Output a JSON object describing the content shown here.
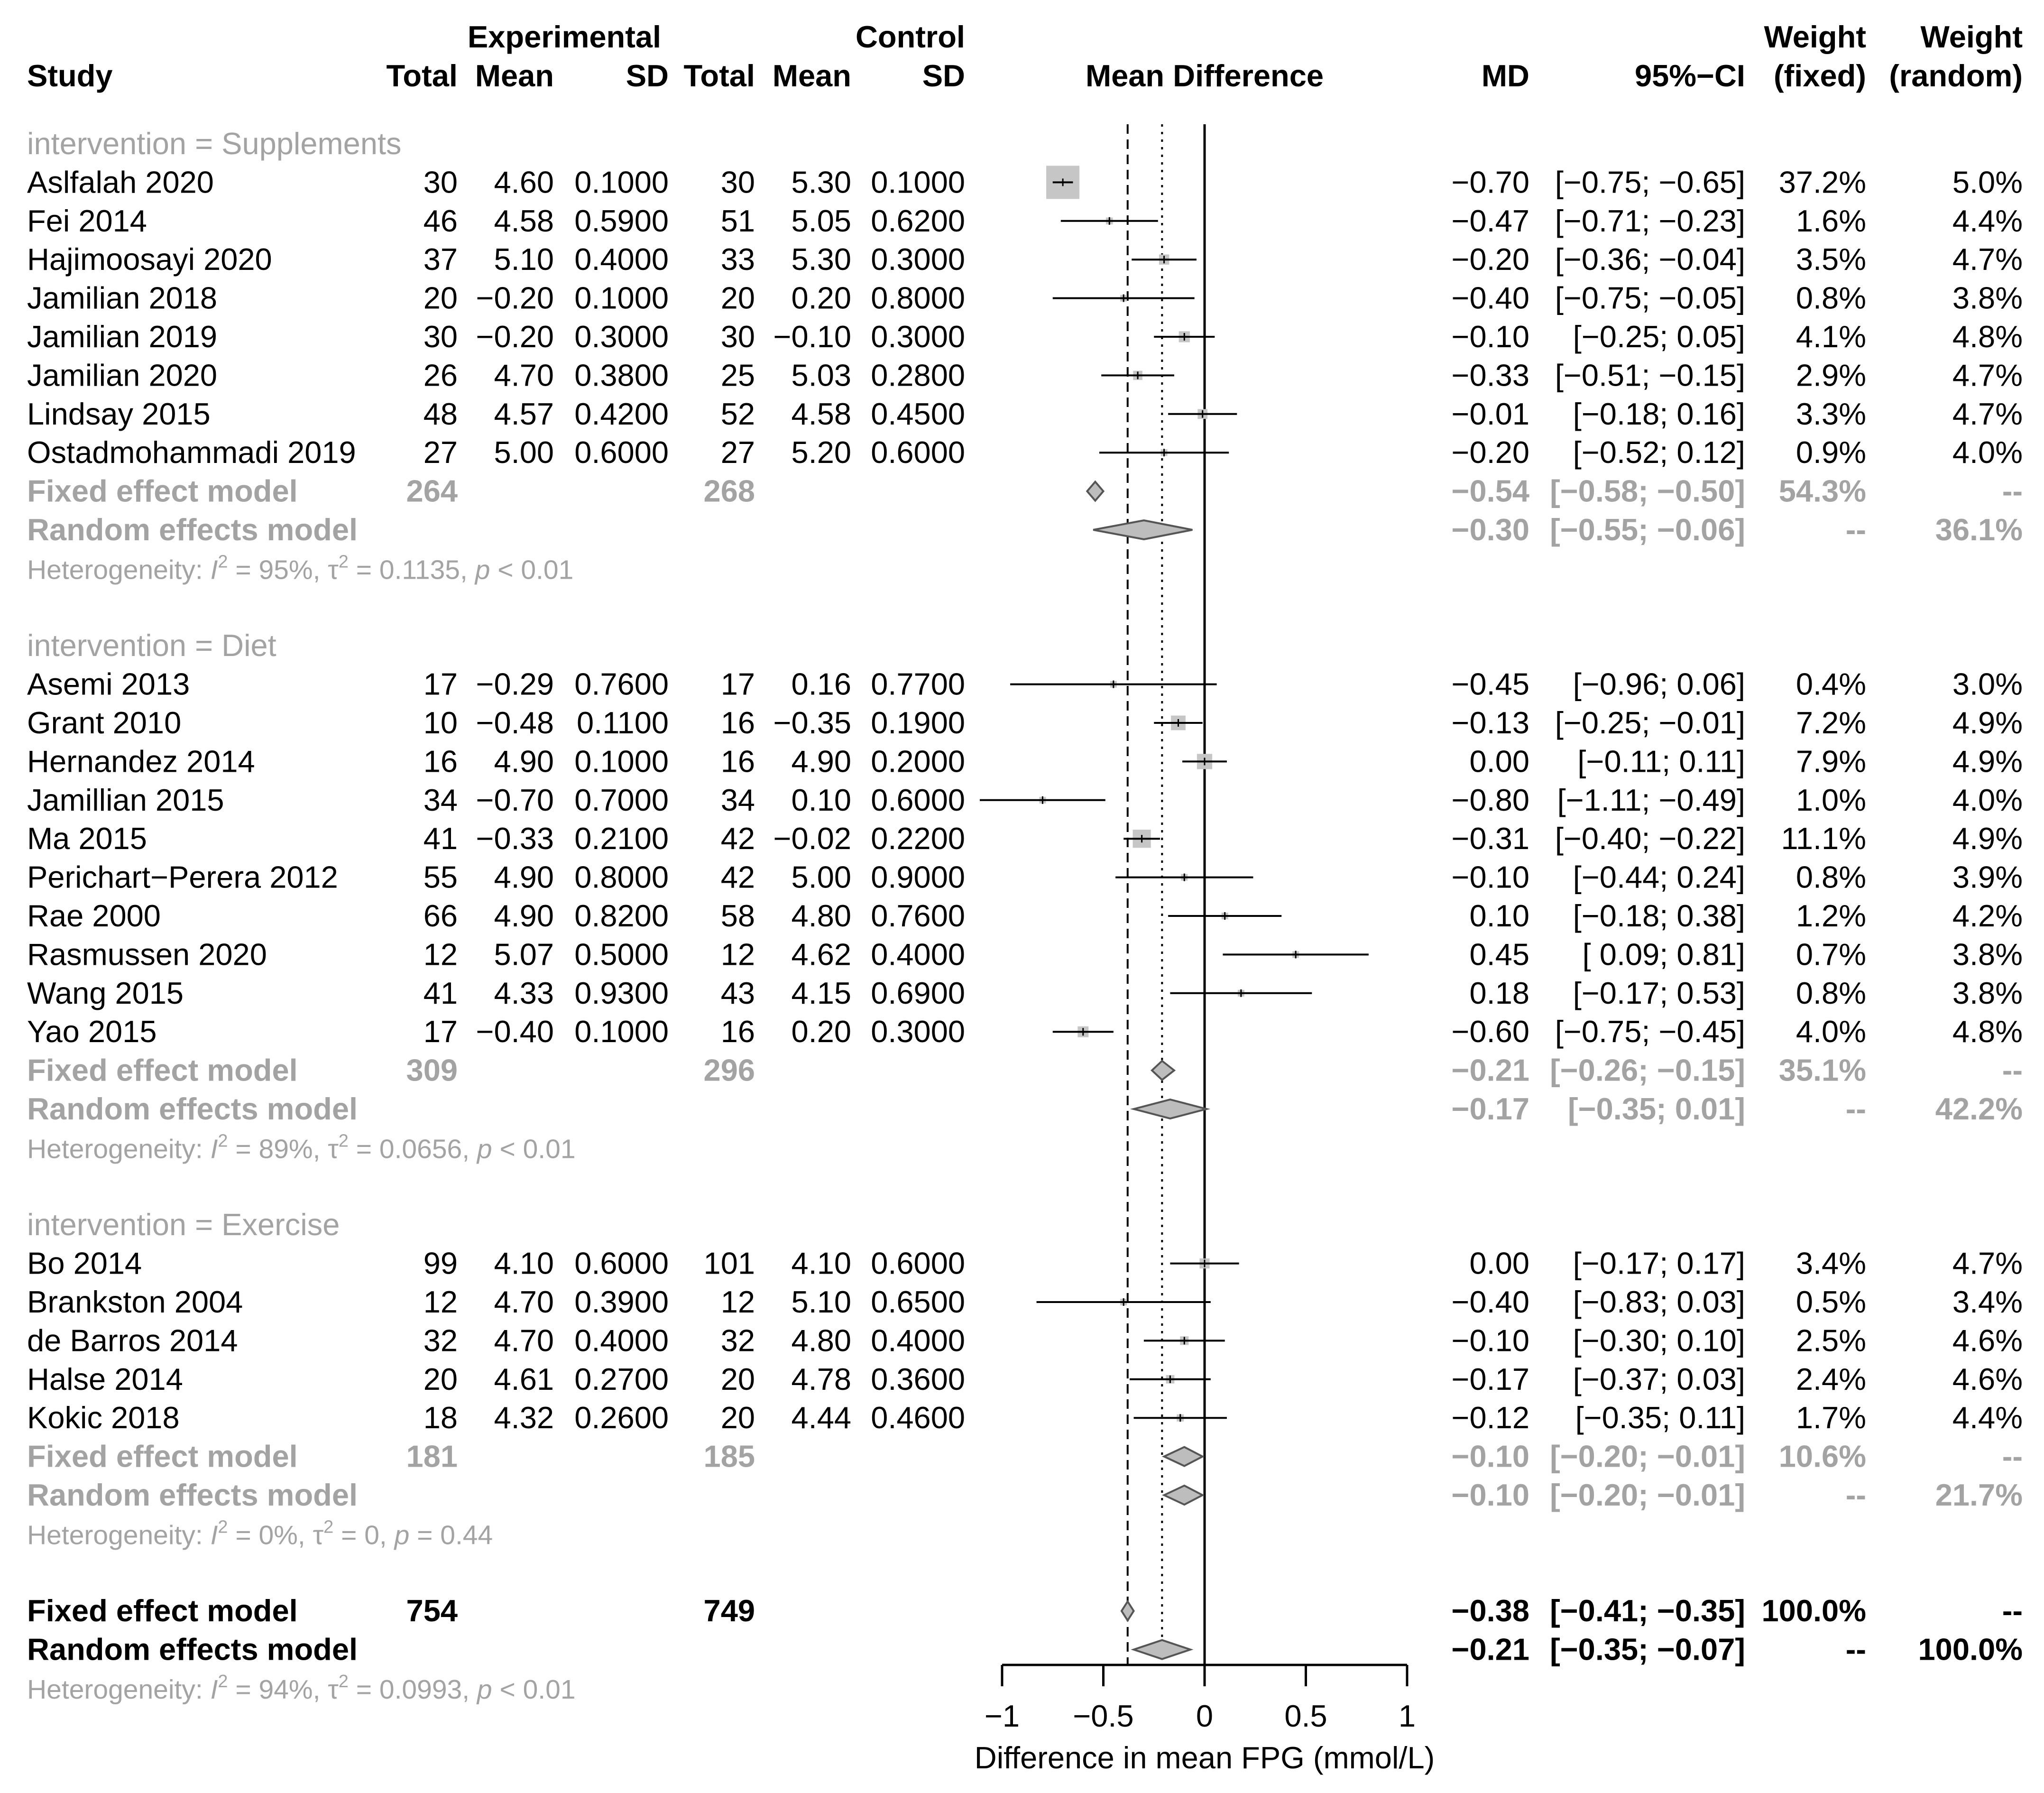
{
  "chart_data": {
    "type": "forest",
    "header": {
      "experimental": "Experimental",
      "control": "Control",
      "weight": "Weight",
      "study": "Study",
      "total": "Total",
      "mean": "Mean",
      "sd": "SD",
      "mean_difference": "Mean Difference",
      "md": "MD",
      "ci": "95%−CI",
      "fixed": "(fixed)",
      "random": "(random)"
    },
    "xaxis": {
      "label": "Difference in mean FPG (mmol/L)",
      "min": -1,
      "max": 1,
      "ticks": [
        {
          "value": -1,
          "label": "−1"
        },
        {
          "value": -0.5,
          "label": "−0.5"
        },
        {
          "value": 0,
          "label": "0"
        },
        {
          "value": 0.5,
          "label": "0.5"
        },
        {
          "value": 1,
          "label": "1"
        }
      ]
    },
    "overall_fixed_md": -0.38,
    "overall_random_md": -0.21,
    "groups": [
      {
        "title": "intervention = Supplements",
        "studies": [
          {
            "name": "Aslfalah 2020",
            "et": "30",
            "em": "4.60",
            "esd": "0.1000",
            "ct": "30",
            "cm": "5.30",
            "csd": "0.1000",
            "md_text": "−0.70",
            "ci_text": "[−0.75; −0.65]",
            "wf": "37.2%",
            "wr": "5.0%",
            "md": -0.7,
            "lo": -0.75,
            "hi": -0.65,
            "w": 37.2
          },
          {
            "name": "Fei 2014",
            "et": "46",
            "em": "4.58",
            "esd": "0.5900",
            "ct": "51",
            "cm": "5.05",
            "csd": "0.6200",
            "md_text": "−0.47",
            "ci_text": "[−0.71; −0.23]",
            "wf": "1.6%",
            "wr": "4.4%",
            "md": -0.47,
            "lo": -0.71,
            "hi": -0.23,
            "w": 1.6
          },
          {
            "name": "Hajimoosayi 2020",
            "et": "37",
            "em": "5.10",
            "esd": "0.4000",
            "ct": "33",
            "cm": "5.30",
            "csd": "0.3000",
            "md_text": "−0.20",
            "ci_text": "[−0.36; −0.04]",
            "wf": "3.5%",
            "wr": "4.7%",
            "md": -0.2,
            "lo": -0.36,
            "hi": -0.04,
            "w": 3.5
          },
          {
            "name": "Jamilian 2018",
            "et": "20",
            "em": "−0.20",
            "esd": "0.1000",
            "ct": "20",
            "cm": "0.20",
            "csd": "0.8000",
            "md_text": "−0.40",
            "ci_text": "[−0.75; −0.05]",
            "wf": "0.8%",
            "wr": "3.8%",
            "md": -0.4,
            "lo": -0.75,
            "hi": -0.05,
            "w": 0.8
          },
          {
            "name": "Jamilian 2019",
            "et": "30",
            "em": "−0.20",
            "esd": "0.3000",
            "ct": "30",
            "cm": "−0.10",
            "csd": "0.3000",
            "md_text": "−0.10",
            "ci_text": "[−0.25; 0.05]",
            "wf": "4.1%",
            "wr": "4.8%",
            "md": -0.1,
            "lo": -0.25,
            "hi": 0.05,
            "w": 4.1
          },
          {
            "name": "Jamilian 2020",
            "et": "26",
            "em": "4.70",
            "esd": "0.3800",
            "ct": "25",
            "cm": "5.03",
            "csd": "0.2800",
            "md_text": "−0.33",
            "ci_text": "[−0.51; −0.15]",
            "wf": "2.9%",
            "wr": "4.7%",
            "md": -0.33,
            "lo": -0.51,
            "hi": -0.15,
            "w": 2.9
          },
          {
            "name": "Lindsay 2015",
            "et": "48",
            "em": "4.57",
            "esd": "0.4200",
            "ct": "52",
            "cm": "4.58",
            "csd": "0.4500",
            "md_text": "−0.01",
            "ci_text": "[−0.18; 0.16]",
            "wf": "3.3%",
            "wr": "4.7%",
            "md": -0.01,
            "lo": -0.18,
            "hi": 0.16,
            "w": 3.3
          },
          {
            "name": "Ostadmohammadi 2019",
            "et": "27",
            "em": "5.00",
            "esd": "0.6000",
            "ct": "27",
            "cm": "5.20",
            "csd": "0.6000",
            "md_text": "−0.20",
            "ci_text": "[−0.52; 0.12]",
            "wf": "0.9%",
            "wr": "4.0%",
            "md": -0.2,
            "lo": -0.52,
            "hi": 0.12,
            "w": 0.9
          }
        ],
        "fixed": {
          "label": "Fixed effect model",
          "et": "264",
          "ct": "268",
          "md_text": "−0.54",
          "ci_text": "[−0.58; −0.50]",
          "wf": "54.3%",
          "wr": "--",
          "md": -0.54,
          "lo": -0.58,
          "hi": -0.5
        },
        "random": {
          "label": "Random effects model",
          "md_text": "−0.30",
          "ci_text": "[−0.55; −0.06]",
          "wf": "--",
          "wr": "36.1%",
          "md": -0.3,
          "lo": -0.55,
          "hi": -0.06
        },
        "het": {
          "prefix": "Heterogeneity: ",
          "i2": "95%",
          "tau2": "0.1135",
          "p": "< 0.01"
        }
      },
      {
        "title": "intervention = Diet",
        "studies": [
          {
            "name": "Asemi 2013",
            "et": "17",
            "em": "−0.29",
            "esd": "0.7600",
            "ct": "17",
            "cm": "0.16",
            "csd": "0.7700",
            "md_text": "−0.45",
            "ci_text": "[−0.96; 0.06]",
            "wf": "0.4%",
            "wr": "3.0%",
            "md": -0.45,
            "lo": -0.96,
            "hi": 0.06,
            "w": 0.4
          },
          {
            "name": "Grant 2010",
            "et": "10",
            "em": "−0.48",
            "esd": "0.1100",
            "ct": "16",
            "cm": "−0.35",
            "csd": "0.1900",
            "md_text": "−0.13",
            "ci_text": "[−0.25; −0.01]",
            "wf": "7.2%",
            "wr": "4.9%",
            "md": -0.13,
            "lo": -0.25,
            "hi": -0.01,
            "w": 7.2
          },
          {
            "name": "Hernandez 2014",
            "et": "16",
            "em": "4.90",
            "esd": "0.1000",
            "ct": "16",
            "cm": "4.90",
            "csd": "0.2000",
            "md_text": "0.00",
            "ci_text": "[−0.11; 0.11]",
            "wf": "7.9%",
            "wr": "4.9%",
            "md": 0.0,
            "lo": -0.11,
            "hi": 0.11,
            "w": 7.9
          },
          {
            "name": "Jamillian 2015",
            "et": "34",
            "em": "−0.70",
            "esd": "0.7000",
            "ct": "34",
            "cm": "0.10",
            "csd": "0.6000",
            "md_text": "−0.80",
            "ci_text": "[−1.11; −0.49]",
            "wf": "1.0%",
            "wr": "4.0%",
            "md": -0.8,
            "lo": -1.11,
            "hi": -0.49,
            "w": 1.0
          },
          {
            "name": "Ma 2015",
            "et": "41",
            "em": "−0.33",
            "esd": "0.2100",
            "ct": "42",
            "cm": "−0.02",
            "csd": "0.2200",
            "md_text": "−0.31",
            "ci_text": "[−0.40; −0.22]",
            "wf": "11.1%",
            "wr": "4.9%",
            "md": -0.31,
            "lo": -0.4,
            "hi": -0.22,
            "w": 11.1
          },
          {
            "name": "Perichart−Perera 2012",
            "et": "55",
            "em": "4.90",
            "esd": "0.8000",
            "ct": "42",
            "cm": "5.00",
            "csd": "0.9000",
            "md_text": "−0.10",
            "ci_text": "[−0.44; 0.24]",
            "wf": "0.8%",
            "wr": "3.9%",
            "md": -0.1,
            "lo": -0.44,
            "hi": 0.24,
            "w": 0.8
          },
          {
            "name": "Rae 2000",
            "et": "66",
            "em": "4.90",
            "esd": "0.8200",
            "ct": "58",
            "cm": "4.80",
            "csd": "0.7600",
            "md_text": "0.10",
            "ci_text": "[−0.18; 0.38]",
            "wf": "1.2%",
            "wr": "4.2%",
            "md": 0.1,
            "lo": -0.18,
            "hi": 0.38,
            "w": 1.2
          },
          {
            "name": "Rasmussen 2020",
            "et": "12",
            "em": "5.07",
            "esd": "0.5000",
            "ct": "12",
            "cm": "4.62",
            "csd": "0.4000",
            "md_text": "0.45",
            "ci_text": "[ 0.09; 0.81]",
            "wf": "0.7%",
            "wr": "3.8%",
            "md": 0.45,
            "lo": 0.09,
            "hi": 0.81,
            "w": 0.7
          },
          {
            "name": "Wang 2015",
            "et": "41",
            "em": "4.33",
            "esd": "0.9300",
            "ct": "43",
            "cm": "4.15",
            "csd": "0.6900",
            "md_text": "0.18",
            "ci_text": "[−0.17; 0.53]",
            "wf": "0.8%",
            "wr": "3.8%",
            "md": 0.18,
            "lo": -0.17,
            "hi": 0.53,
            "w": 0.8
          },
          {
            "name": "Yao 2015",
            "et": "17",
            "em": "−0.40",
            "esd": "0.1000",
            "ct": "16",
            "cm": "0.20",
            "csd": "0.3000",
            "md_text": "−0.60",
            "ci_text": "[−0.75; −0.45]",
            "wf": "4.0%",
            "wr": "4.8%",
            "md": -0.6,
            "lo": -0.75,
            "hi": -0.45,
            "w": 4.0
          }
        ],
        "fixed": {
          "label": "Fixed effect model",
          "et": "309",
          "ct": "296",
          "md_text": "−0.21",
          "ci_text": "[−0.26; −0.15]",
          "wf": "35.1%",
          "wr": "--",
          "md": -0.21,
          "lo": -0.26,
          "hi": -0.15
        },
        "random": {
          "label": "Random effects model",
          "md_text": "−0.17",
          "ci_text": "[−0.35; 0.01]",
          "wf": "--",
          "wr": "42.2%",
          "md": -0.17,
          "lo": -0.35,
          "hi": 0.01
        },
        "het": {
          "prefix": "Heterogeneity: ",
          "i2": "89%",
          "tau2": "0.0656",
          "p": "< 0.01"
        }
      },
      {
        "title": "intervention = Exercise",
        "studies": [
          {
            "name": "Bo 2014",
            "et": "99",
            "em": "4.10",
            "esd": "0.6000",
            "ct": "101",
            "cm": "4.10",
            "csd": "0.6000",
            "md_text": "0.00",
            "ci_text": "[−0.17; 0.17]",
            "wf": "3.4%",
            "wr": "4.7%",
            "md": 0.0,
            "lo": -0.17,
            "hi": 0.17,
            "w": 3.4
          },
          {
            "name": "Brankston 2004",
            "et": "12",
            "em": "4.70",
            "esd": "0.3900",
            "ct": "12",
            "cm": "5.10",
            "csd": "0.6500",
            "md_text": "−0.40",
            "ci_text": "[−0.83; 0.03]",
            "wf": "0.5%",
            "wr": "3.4%",
            "md": -0.4,
            "lo": -0.83,
            "hi": 0.03,
            "w": 0.5
          },
          {
            "name": "de Barros 2014",
            "et": "32",
            "em": "4.70",
            "esd": "0.4000",
            "ct": "32",
            "cm": "4.80",
            "csd": "0.4000",
            "md_text": "−0.10",
            "ci_text": "[−0.30; 0.10]",
            "wf": "2.5%",
            "wr": "4.6%",
            "md": -0.1,
            "lo": -0.3,
            "hi": 0.1,
            "w": 2.5
          },
          {
            "name": "Halse 2014",
            "et": "20",
            "em": "4.61",
            "esd": "0.2700",
            "ct": "20",
            "cm": "4.78",
            "csd": "0.3600",
            "md_text": "−0.17",
            "ci_text": "[−0.37; 0.03]",
            "wf": "2.4%",
            "wr": "4.6%",
            "md": -0.17,
            "lo": -0.37,
            "hi": 0.03,
            "w": 2.4
          },
          {
            "name": "Kokic 2018",
            "et": "18",
            "em": "4.32",
            "esd": "0.2600",
            "ct": "20",
            "cm": "4.44",
            "csd": "0.4600",
            "md_text": "−0.12",
            "ci_text": "[−0.35; 0.11]",
            "wf": "1.7%",
            "wr": "4.4%",
            "md": -0.12,
            "lo": -0.35,
            "hi": 0.11,
            "w": 1.7
          }
        ],
        "fixed": {
          "label": "Fixed effect model",
          "et": "181",
          "ct": "185",
          "md_text": "−0.10",
          "ci_text": "[−0.20; −0.01]",
          "wf": "10.6%",
          "wr": "--",
          "md": -0.1,
          "lo": -0.2,
          "hi": -0.01
        },
        "random": {
          "label": "Random effects model",
          "md_text": "−0.10",
          "ci_text": "[−0.20; −0.01]",
          "wf": "--",
          "wr": "21.7%",
          "md": -0.1,
          "lo": -0.2,
          "hi": -0.01
        },
        "het": {
          "prefix": "Heterogeneity: ",
          "i2": "0%",
          "tau2": "0",
          "p": "= 0.44"
        }
      }
    ],
    "overall": {
      "fixed": {
        "label": "Fixed effect model",
        "et": "754",
        "ct": "749",
        "md_text": "−0.38",
        "ci_text": "[−0.41; −0.35]",
        "wf": "100.0%",
        "wr": "--",
        "md": -0.38,
        "lo": -0.41,
        "hi": -0.35
      },
      "random": {
        "label": "Random effects model",
        "md_text": "−0.21",
        "ci_text": "[−0.35; −0.07]",
        "wf": "--",
        "wr": "100.0%",
        "md": -0.21,
        "lo": -0.35,
        "hi": -0.07
      },
      "het": {
        "prefix": "Heterogeneity: ",
        "i2": "94%",
        "tau2": "0.0993",
        "p": "< 0.01"
      }
    }
  }
}
